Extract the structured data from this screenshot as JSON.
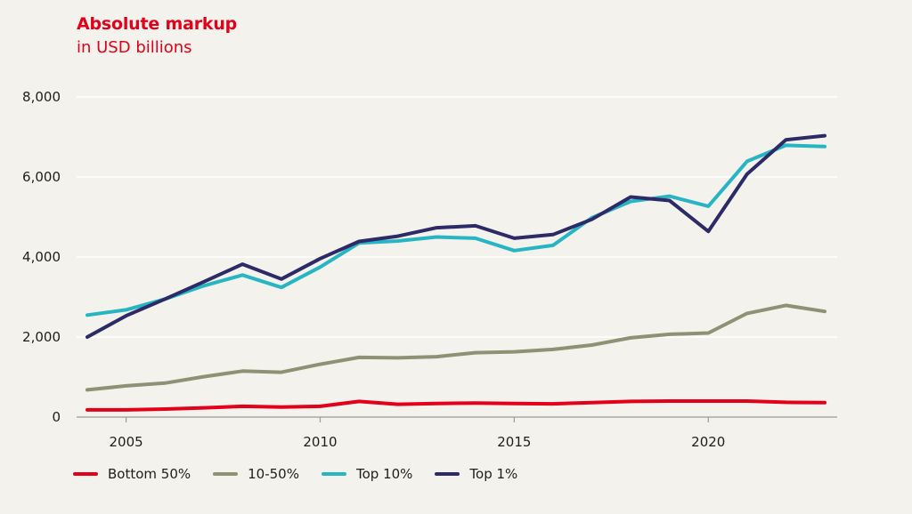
{
  "header": {
    "title": "Absolute markup",
    "subtitle": "in USD billions"
  },
  "chart_data": {
    "type": "line",
    "title": "Absolute markup",
    "subtitle": "in USD billions",
    "xlabel": "",
    "ylabel": "",
    "x": [
      2004,
      2005,
      2006,
      2007,
      2008,
      2009,
      2010,
      2011,
      2012,
      2013,
      2014,
      2015,
      2016,
      2017,
      2018,
      2019,
      2020,
      2021,
      2022,
      2023
    ],
    "xlim": [
      2004,
      2023
    ],
    "ylim": [
      0,
      8000
    ],
    "x_ticks": [
      2005,
      2010,
      2015,
      2020
    ],
    "x_tick_labels": [
      "2005",
      "2010",
      "2015",
      "2020"
    ],
    "y_ticks": [
      0,
      2000,
      4000,
      6000,
      8000
    ],
    "y_tick_labels": [
      "0",
      "2,000",
      "4,000",
      "6,000",
      "8,000"
    ],
    "grid": "horizontal",
    "legend_position": "bottom-left",
    "series": [
      {
        "name": "Bottom 50%",
        "color": "#e3001b",
        "values": [
          180,
          180,
          200,
          230,
          270,
          250,
          270,
          390,
          320,
          340,
          350,
          340,
          330,
          360,
          390,
          400,
          400,
          400,
          370,
          360
        ]
      },
      {
        "name": "10-50%",
        "color": "#8d9275",
        "values": [
          680,
          780,
          850,
          1010,
          1150,
          1120,
          1320,
          1490,
          1480,
          1510,
          1610,
          1630,
          1690,
          1800,
          1980,
          2070,
          2100,
          2590,
          2790,
          2640
        ]
      },
      {
        "name": "Top 10%",
        "color": "#27b5c4",
        "values": [
          2550,
          2680,
          2950,
          3280,
          3550,
          3240,
          3750,
          4350,
          4400,
          4500,
          4470,
          4160,
          4290,
          4980,
          5390,
          5520,
          5270,
          6390,
          6790,
          6760
        ]
      },
      {
        "name": "Top 1%",
        "color": "#2c2a67",
        "values": [
          2000,
          2530,
          2950,
          3380,
          3820,
          3450,
          3960,
          4390,
          4520,
          4730,
          4780,
          4470,
          4560,
          4940,
          5500,
          5410,
          4640,
          6070,
          6930,
          7030
        ]
      }
    ]
  }
}
